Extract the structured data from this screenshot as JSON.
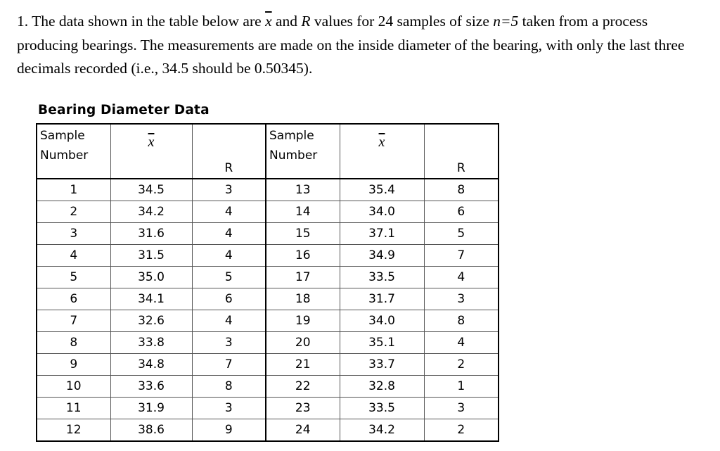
{
  "problem": {
    "number": "1.",
    "t1": " The data shown in the table below are ",
    "xbar_symbol": "x",
    "t2": " and ",
    "r_symbol": "R",
    "t3": " values for 24 samples of size ",
    "n_expr": "n=5",
    "t4": " taken from a process producing bearings.  The measurements are made on the inside diameter of the bearing, with only the last three decimals recorded (i.e., 34.5 should be 0.50345)."
  },
  "table": {
    "caption": "Bearing Diameter Data",
    "headers": {
      "sample_line1": "Sample",
      "sample_line2": "Number",
      "xbar": "x",
      "r": "R"
    },
    "left_rows": [
      {
        "sample": "1",
        "xbar": "34.5",
        "r": "3"
      },
      {
        "sample": "2",
        "xbar": "34.2",
        "r": "4"
      },
      {
        "sample": "3",
        "xbar": "31.6",
        "r": "4"
      },
      {
        "sample": "4",
        "xbar": "31.5",
        "r": "4"
      },
      {
        "sample": "5",
        "xbar": "35.0",
        "r": "5"
      },
      {
        "sample": "6",
        "xbar": "34.1",
        "r": "6"
      },
      {
        "sample": "7",
        "xbar": "32.6",
        "r": "4"
      },
      {
        "sample": "8",
        "xbar": "33.8",
        "r": "3"
      },
      {
        "sample": "9",
        "xbar": "34.8",
        "r": "7"
      },
      {
        "sample": "10",
        "xbar": "33.6",
        "r": "8"
      },
      {
        "sample": "11",
        "xbar": "31.9",
        "r": "3"
      },
      {
        "sample": "12",
        "xbar": "38.6",
        "r": "9"
      }
    ],
    "right_rows": [
      {
        "sample": "13",
        "xbar": "35.4",
        "r": "8"
      },
      {
        "sample": "14",
        "xbar": "34.0",
        "r": "6"
      },
      {
        "sample": "15",
        "xbar": "37.1",
        "r": "5"
      },
      {
        "sample": "16",
        "xbar": "34.9",
        "r": "7"
      },
      {
        "sample": "17",
        "xbar": "33.5",
        "r": "4"
      },
      {
        "sample": "18",
        "xbar": "31.7",
        "r": "3"
      },
      {
        "sample": "19",
        "xbar": "34.0",
        "r": "8"
      },
      {
        "sample": "20",
        "xbar": "35.1",
        "r": "4"
      },
      {
        "sample": "21",
        "xbar": "33.7",
        "r": "2"
      },
      {
        "sample": "22",
        "xbar": "32.8",
        "r": "1"
      },
      {
        "sample": "23",
        "xbar": "33.5",
        "r": "3"
      },
      {
        "sample": "24",
        "xbar": "34.2",
        "r": "2"
      }
    ]
  }
}
